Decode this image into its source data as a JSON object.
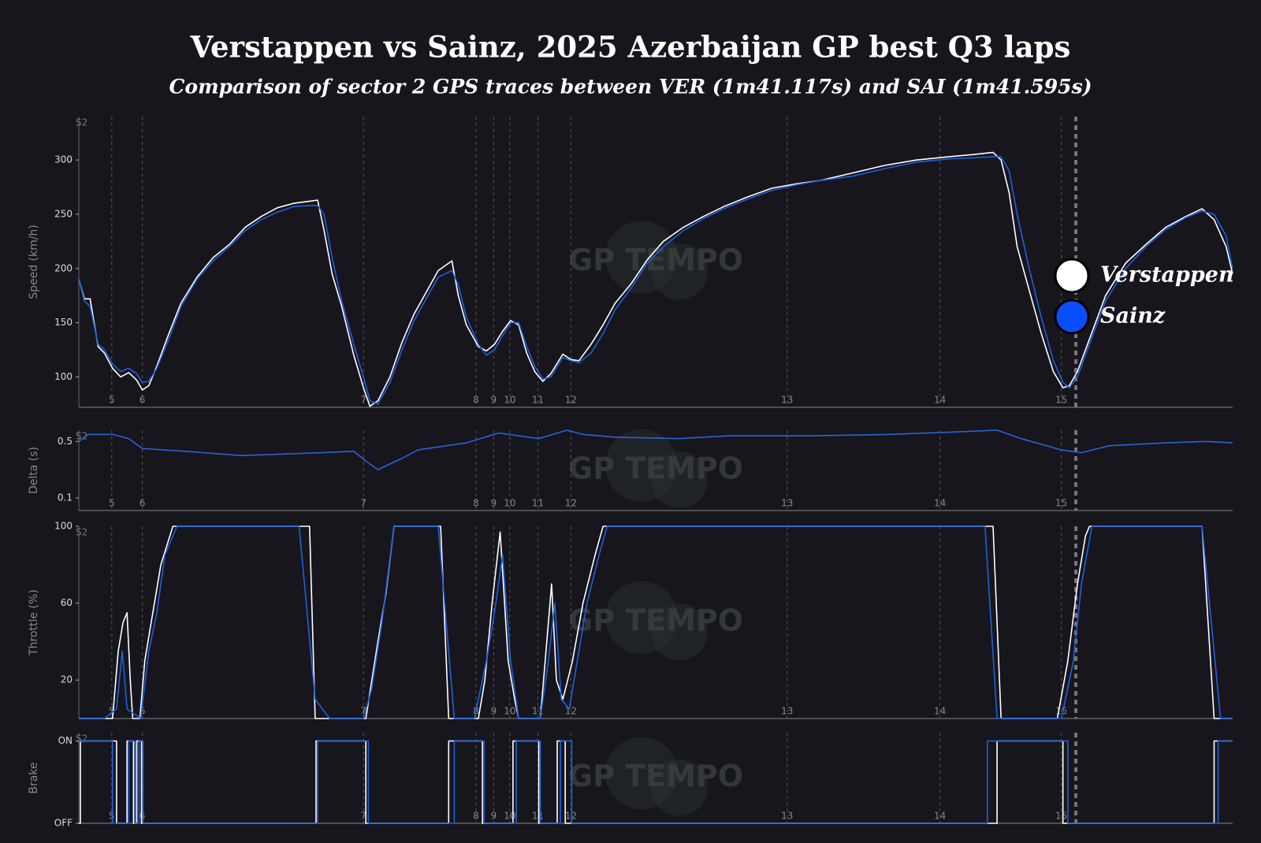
{
  "title": "Verstappen vs Sainz, 2025 Azerbaijan GP best Q3 laps",
  "subtitle": "Comparison of sector 2 GPS traces between VER (1m41.117s) and SAI (1m41.595s)",
  "watermark": "GP TEMPO",
  "sector_label": "S2",
  "sector_end": 1240,
  "corners": [
    {
      "value": 41,
      "label": "5"
    },
    {
      "value": 79,
      "label": "6"
    },
    {
      "value": 354,
      "label": "7"
    },
    {
      "value": 494,
      "label": "8"
    },
    {
      "value": 516,
      "label": "9"
    },
    {
      "value": 536,
      "label": "10"
    },
    {
      "value": 571,
      "label": "11"
    },
    {
      "value": 612,
      "label": "12"
    },
    {
      "value": 881,
      "label": "13"
    },
    {
      "value": 1071,
      "label": "14"
    },
    {
      "value": 1222,
      "label": "15"
    }
  ],
  "chart_data": [
    {
      "type": "line",
      "ylabel": "Speed (km/h)",
      "xlim": [
        0,
        1435
      ],
      "ylim": [
        72,
        340
      ],
      "yticks": [
        100,
        150,
        200,
        250,
        300
      ],
      "legend": "right",
      "x": [
        0,
        7,
        14,
        24,
        32,
        42,
        52,
        62,
        72,
        79,
        87,
        97,
        112,
        127,
        147,
        167,
        187,
        207,
        227,
        247,
        267,
        287,
        297,
        305,
        315,
        327,
        342,
        354,
        362,
        372,
        387,
        402,
        417,
        432,
        447,
        464,
        472,
        482,
        497,
        507,
        517,
        527,
        537,
        547,
        557,
        567,
        577,
        587,
        602,
        612,
        622,
        637,
        652,
        667,
        687,
        707,
        727,
        752,
        777,
        802,
        832,
        862,
        892,
        922,
        962,
        1002,
        1042,
        1082,
        1112,
        1137,
        1147,
        1157,
        1167,
        1182,
        1197,
        1212,
        1224,
        1232,
        1242,
        1257,
        1277,
        1302,
        1327,
        1352,
        1377,
        1397,
        1412,
        1427,
        1435
      ],
      "series": [
        {
          "name": "Verstappen",
          "color": "#ffffff",
          "values": [
            190,
            172,
            172,
            128,
            122,
            108,
            100,
            104,
            97,
            88,
            92,
            110,
            140,
            168,
            192,
            210,
            222,
            238,
            248,
            256,
            260,
            262,
            263,
            235,
            195,
            165,
            120,
            90,
            73,
            78,
            100,
            132,
            158,
            178,
            198,
            207,
            175,
            148,
            128,
            124,
            130,
            142,
            152,
            148,
            122,
            105,
            96,
            103,
            121,
            116,
            115,
            130,
            148,
            168,
            186,
            208,
            225,
            238,
            248,
            257,
            266,
            274,
            278,
            281,
            288,
            295,
            300,
            303,
            305,
            307,
            300,
            270,
            220,
            180,
            140,
            105,
            90,
            92,
            105,
            135,
            175,
            205,
            222,
            238,
            248,
            255,
            245,
            220,
            195
          ]
        },
        {
          "name": "Sainz",
          "color": "#1f5fe0",
          "values": [
            190,
            170,
            165,
            130,
            125,
            112,
            105,
            108,
            103,
            95,
            96,
            108,
            135,
            165,
            190,
            207,
            220,
            235,
            245,
            252,
            257,
            258,
            258,
            250,
            210,
            170,
            130,
            100,
            78,
            75,
            95,
            125,
            152,
            172,
            192,
            198,
            185,
            155,
            130,
            120,
            125,
            138,
            150,
            150,
            128,
            110,
            98,
            100,
            118,
            115,
            113,
            122,
            140,
            162,
            182,
            205,
            220,
            235,
            246,
            255,
            264,
            272,
            277,
            281,
            285,
            292,
            298,
            301,
            302,
            303,
            303,
            290,
            250,
            200,
            155,
            115,
            95,
            90,
            100,
            130,
            170,
            200,
            220,
            236,
            247,
            253,
            250,
            230,
            200
          ]
        }
      ]
    },
    {
      "type": "line",
      "ylabel": "Delta (s)",
      "xlim": [
        0,
        1435
      ],
      "ylim": [
        0.01,
        0.58
      ],
      "yticks": [
        0.1,
        0.5
      ],
      "color": "#2a62d8",
      "x": [
        0,
        12,
        42,
        62,
        79,
        132,
        202,
        302,
        342,
        357,
        372,
        402,
        422,
        482,
        522,
        572,
        607,
        627,
        667,
        747,
        807,
        907,
        1007,
        1102,
        1142,
        1172,
        1222,
        1247,
        1282,
        1352,
        1402,
        1435
      ],
      "values": [
        0.5,
        0.55,
        0.55,
        0.52,
        0.45,
        0.43,
        0.4,
        0.42,
        0.43,
        0.36,
        0.3,
        0.38,
        0.44,
        0.49,
        0.56,
        0.52,
        0.58,
        0.55,
        0.53,
        0.52,
        0.54,
        0.54,
        0.55,
        0.57,
        0.58,
        0.52,
        0.44,
        0.42,
        0.47,
        0.49,
        0.5,
        0.49
      ]
    },
    {
      "type": "line",
      "ylabel": "Throttle (%)",
      "xlim": [
        0,
        1435
      ],
      "ylim": [
        0,
        100
      ],
      "yticks": [
        20,
        60,
        100
      ],
      "series": [
        {
          "color": "#ffffff",
          "x": [
            0,
            42,
            49,
            55,
            60,
            64,
            67,
            76,
            82,
            92,
            102,
            117,
            287,
            294,
            357,
            372,
            382,
            392,
            450,
            460,
            497,
            505,
            514,
            524,
            534,
            542,
            547,
            574,
            582,
            588,
            594,
            602,
            614,
            627,
            642,
            652,
            1137,
            1147,
            1217,
            1230,
            1242,
            1252,
            1257,
            1397,
            1412,
            1435
          ],
          "values": [
            0,
            0,
            35,
            50,
            55,
            20,
            0,
            0,
            30,
            55,
            80,
            100,
            100,
            0,
            0,
            40,
            65,
            100,
            100,
            0,
            0,
            20,
            60,
            97,
            30,
            10,
            0,
            0,
            40,
            70,
            20,
            10,
            30,
            60,
            85,
            100,
            100,
            0,
            0,
            30,
            70,
            95,
            100,
            100,
            0,
            0
          ]
        },
        {
          "color": "#1f5fe0",
          "x": [
            0,
            32,
            47,
            54,
            60,
            77,
            87,
            97,
            107,
            122,
            274,
            294,
            312,
            354,
            364,
            377,
            392,
            447,
            467,
            492,
            507,
            517,
            527,
            537,
            547,
            574,
            584,
            592,
            600,
            610,
            620,
            632,
            647,
            657,
            1127,
            1142,
            1222,
            1237,
            1247,
            1260,
            1397,
            1420,
            1435
          ],
          "values": [
            0,
            0,
            5,
            35,
            5,
            0,
            35,
            55,
            85,
            100,
            100,
            10,
            0,
            0,
            15,
            50,
            100,
            100,
            0,
            0,
            30,
            55,
            85,
            30,
            0,
            0,
            30,
            60,
            10,
            5,
            30,
            60,
            85,
            100,
            100,
            0,
            0,
            30,
            70,
            100,
            100,
            0,
            0
          ]
        }
      ]
    },
    {
      "type": "line",
      "ylabel": "Brake",
      "xlim": [
        0,
        1435
      ],
      "ylim": [
        0,
        1.1
      ],
      "yticks": [
        {
          "value": 0,
          "label": "OFF"
        },
        {
          "value": 1,
          "label": "ON"
        }
      ],
      "series": [
        {
          "color": "#ffffff",
          "x": [
            0,
            2,
            2,
            47,
            47,
            60,
            60,
            68,
            68,
            72,
            72,
            78,
            78,
            295,
            295,
            357,
            357,
            460,
            460,
            502,
            502,
            540,
            540,
            572,
            572,
            595,
            595,
            605,
            605,
            1142,
            1142,
            1224,
            1224,
            1412,
            1412,
            1435
          ],
          "values": [
            0,
            0,
            1,
            1,
            0,
            0,
            1,
            1,
            0,
            0,
            1,
            1,
            0,
            0,
            1,
            1,
            0,
            0,
            1,
            1,
            0,
            0,
            1,
            1,
            0,
            0,
            1,
            1,
            0,
            0,
            1,
            1,
            0,
            0,
            1,
            1
          ]
        },
        {
          "color": "#1f5fe0",
          "x": [
            0,
            42,
            42,
            62,
            62,
            70,
            70,
            75,
            75,
            80,
            80,
            297,
            297,
            360,
            360,
            467,
            467,
            504,
            504,
            544,
            544,
            574,
            574,
            599,
            599,
            613,
            613,
            1130,
            1130,
            1230,
            1230,
            1417,
            1417,
            1435
          ],
          "values": [
            1,
            1,
            0,
            0,
            1,
            1,
            0,
            0,
            1,
            1,
            0,
            0,
            1,
            1,
            0,
            0,
            1,
            1,
            0,
            0,
            1,
            1,
            0,
            0,
            1,
            1,
            0,
            0,
            1,
            1,
            0,
            0,
            1,
            1
          ]
        }
      ]
    }
  ]
}
